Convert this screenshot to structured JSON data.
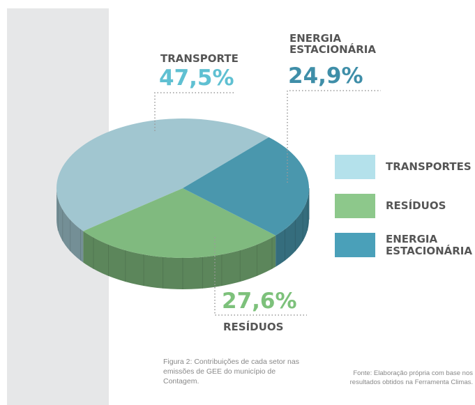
{
  "chart_data": {
    "type": "pie",
    "categories": [
      "TRANSPORTES",
      "RESÍDUOS",
      "ENERGIA ESTACIONÁRIA"
    ],
    "slice_labels": [
      "TRANSPORTE",
      "RESÍDUOS",
      "ENERGIA ESTACIONÁRIA"
    ],
    "values": [
      47.5,
      27.6,
      24.9
    ],
    "value_labels": [
      "47,5%",
      "27,6%",
      "24,9%"
    ],
    "colors": [
      "#a1c6d0",
      "#80ba7f",
      "#4a97ad"
    ],
    "legend_colors": [
      "#b4e1eb",
      "#8dc88b",
      "#4aa0b9"
    ],
    "label_colors": [
      "#5fc0d2",
      "#7dc17b",
      "#3f8ea8"
    ],
    "caption": "Figura 2: Contribuições de cada setor nas emissões de GEE do município de Contagem.",
    "source": "Fonte: Elaboração própria com base nos resultados obtidos na Ferramenta Climas."
  }
}
